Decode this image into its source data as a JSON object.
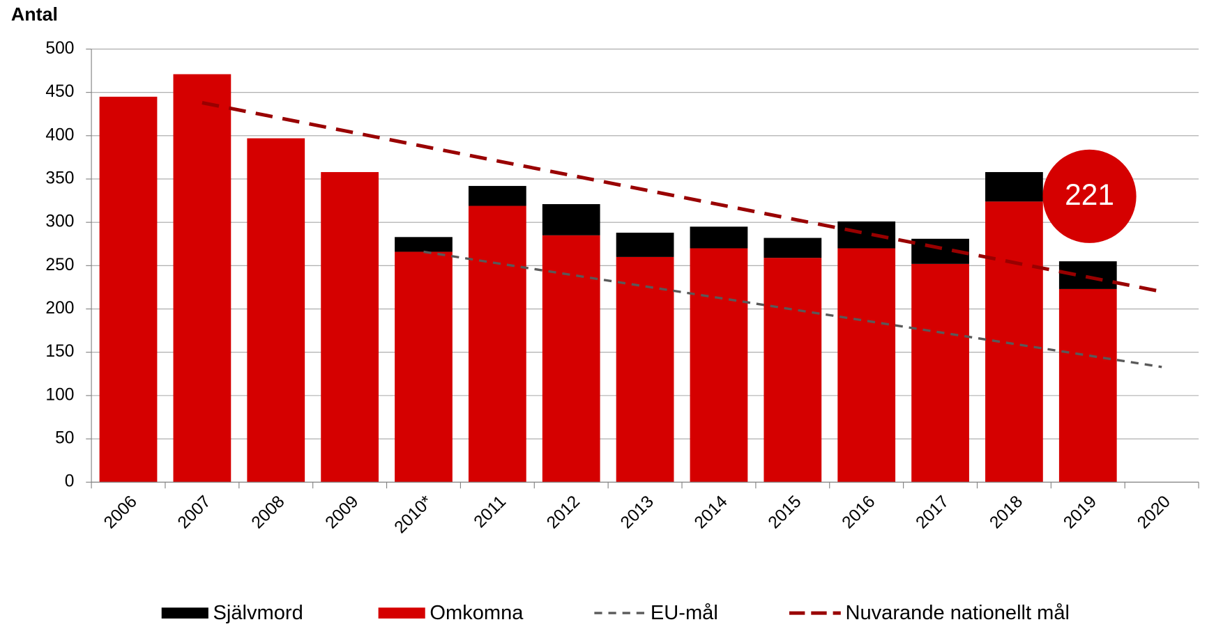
{
  "chart_data": {
    "type": "bar",
    "stacked": true,
    "y_label": "Antal",
    "categories": [
      "2006",
      "2007",
      "2008",
      "2009",
      "2010*",
      "2011",
      "2012",
      "2013",
      "2014",
      "2015",
      "2016",
      "2017",
      "2018",
      "2019",
      "2020"
    ],
    "series": [
      {
        "name": "Självmord",
        "type": "bar",
        "color": "#000000",
        "values": [
          null,
          null,
          null,
          null,
          17,
          23,
          36,
          28,
          25,
          23,
          31,
          29,
          34,
          32,
          null
        ]
      },
      {
        "name": "Omkomna",
        "type": "bar",
        "color": "#d50000",
        "values": [
          445,
          471,
          397,
          358,
          266,
          319,
          285,
          260,
          270,
          259,
          270,
          252,
          324,
          223,
          null
        ]
      },
      {
        "name": "EU-mål",
        "type": "line",
        "color": "#595959",
        "dashed": true,
        "values": [
          null,
          null,
          null,
          null,
          266,
          252.7,
          239.4,
          226.1,
          212.8,
          199.5,
          186.2,
          172.9,
          159.6,
          146.3,
          133
        ]
      },
      {
        "name": "Nuvarande nationellt mål",
        "type": "line",
        "color": "#990000",
        "dashed": true,
        "values": [
          null,
          438,
          421.2,
          404.5,
          387.7,
          370.9,
          354.2,
          337.4,
          320.6,
          303.8,
          287.1,
          270.3,
          253.5,
          236.8,
          220
        ]
      }
    ],
    "annotation": {
      "text": "221",
      "color": "#d50000"
    },
    "ylim": [
      0,
      500
    ],
    "yticks": [
      0,
      50,
      100,
      150,
      200,
      250,
      300,
      350,
      400,
      450,
      500
    ],
    "grid": true,
    "legend": "bottom"
  }
}
